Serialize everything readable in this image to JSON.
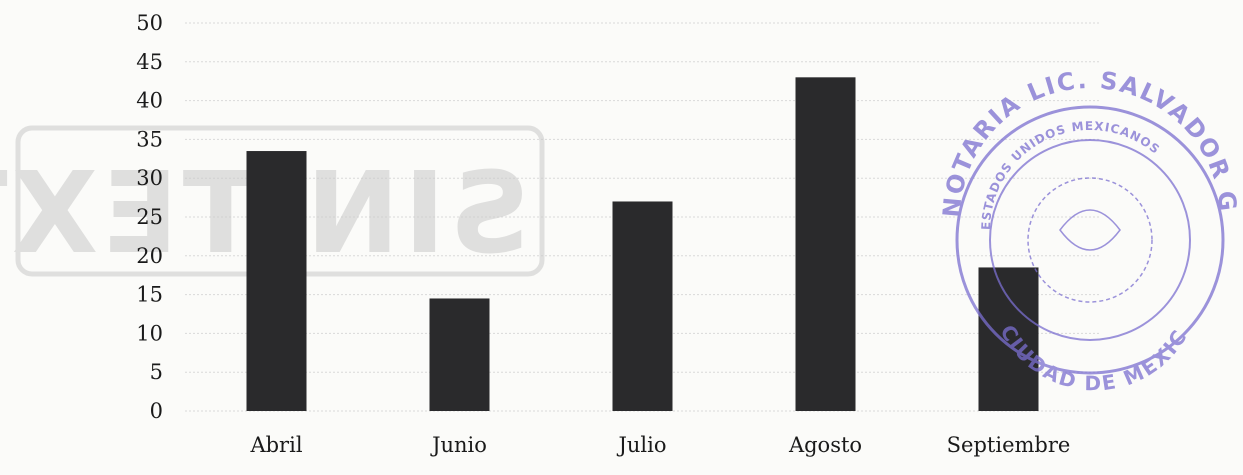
{
  "chart_data": {
    "type": "bar",
    "categories": [
      "Abril",
      "Junio",
      "Julio",
      "Agosto",
      "Septiembre"
    ],
    "values": [
      33.5,
      14.5,
      27,
      43,
      18.5
    ],
    "title": "",
    "xlabel": "",
    "ylabel": "",
    "ylim": [
      0,
      50
    ],
    "yticks": [
      0,
      5,
      10,
      15,
      20,
      25,
      30,
      35,
      40,
      45,
      50
    ],
    "grid": true,
    "legend": "none",
    "bar_color": "#2a2a2c"
  },
  "overlay": {
    "watermark_text": "SIN TEXTO",
    "watermark_color": "#c9c9c9",
    "seal_color": "#7b6fd0",
    "seal_outer_text": "NOTARIA LIC. SALVADOR GODINEZ VIERA",
    "seal_inner_text": "ESTADOS UNIDOS MEXICANOS",
    "seal_bottom_text": "CIUDAD DE MEXICO"
  }
}
